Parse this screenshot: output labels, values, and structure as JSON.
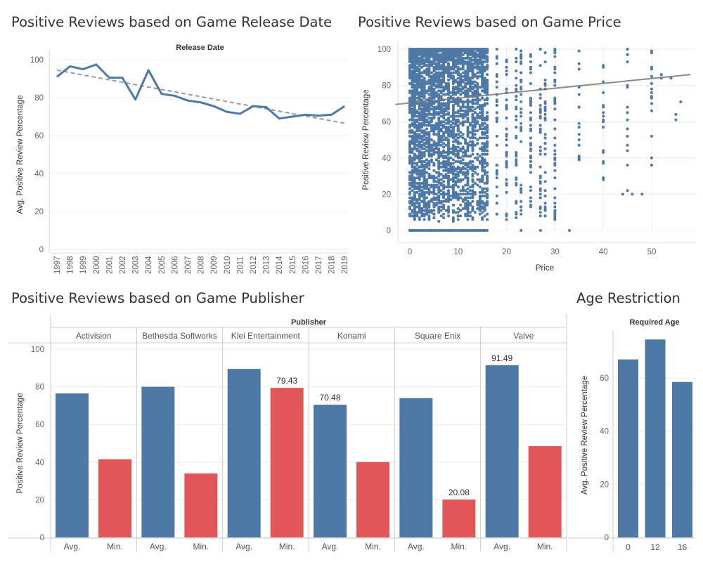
{
  "titles": {
    "release": "Positive Reviews based on Game Release Date",
    "price": "Positive Reviews based on Game Price",
    "publisher": "Positive Reviews based on Game Publisher",
    "age": "Age Restriction"
  },
  "chart_data": [
    {
      "type": "line",
      "title": "Positive Reviews based on Game Release Date",
      "header": "Release Date",
      "ylabel": "Avg. Positive Review Percentage",
      "ylim": [
        0,
        100
      ],
      "yticks": [
        0,
        20,
        40,
        60,
        80,
        100
      ],
      "x": [
        "1997",
        "1998",
        "1999",
        "2000",
        "2001",
        "2002",
        "2003",
        "2004",
        "2005",
        "2006",
        "2007",
        "2008",
        "2009",
        "2010",
        "2011",
        "2012",
        "2013",
        "2014",
        "2015",
        "2016",
        "2017",
        "2018",
        "2019"
      ],
      "values": [
        91,
        96.5,
        95,
        97.5,
        90.5,
        90.5,
        79,
        94.5,
        82,
        81,
        78.5,
        77.5,
        75.5,
        72.5,
        71.5,
        75.5,
        75,
        69,
        70,
        71,
        70.5,
        71,
        75.5
      ],
      "trendline": [
        94.5,
        66.5
      ],
      "grid": true
    },
    {
      "type": "scatter",
      "title": "Positive Reviews based on Game Price",
      "xlabel": "Price",
      "ylabel": "Positive Review Percentage",
      "xlim": [
        -2,
        58
      ],
      "ylim": [
        0,
        100
      ],
      "xticks": [
        0,
        10,
        20,
        30,
        40,
        50
      ],
      "yticks": [
        0,
        20,
        40,
        60,
        80,
        100
      ],
      "trendline": [
        [
          -3,
          69.5
        ],
        [
          58,
          86
        ]
      ],
      "grid": true
    },
    {
      "type": "bar",
      "title": "Positive Reviews based on Game Publisher",
      "header": "Publisher",
      "ylabel": "Positive Review Percentage",
      "ylim": [
        0,
        100
      ],
      "yticks": [
        0,
        20,
        40,
        60,
        80,
        100
      ],
      "categories": [
        "Activision",
        "Bethesda Softworks",
        "Klei Entertainment",
        "Konami",
        "Square Enix",
        "Valve"
      ],
      "sub_labels": [
        "Avg.",
        "Min."
      ],
      "series": [
        {
          "name": "Avg.",
          "values": [
            76.5,
            80,
            89.5,
            70.48,
            74,
            91.49
          ]
        },
        {
          "name": "Min.",
          "values": [
            41.5,
            34,
            79.43,
            40,
            20.08,
            48.5
          ]
        }
      ],
      "data_labels": [
        {
          "publisher": "Klei Entertainment",
          "series": "Min.",
          "text": "79.43"
        },
        {
          "publisher": "Konami",
          "series": "Avg.",
          "text": "70.48"
        },
        {
          "publisher": "Square Enix",
          "series": "Min.",
          "text": "20.08"
        },
        {
          "publisher": "Valve",
          "series": "Avg.",
          "text": "91.49"
        }
      ],
      "grid": true
    },
    {
      "type": "bar",
      "title": "Age Restriction",
      "header": "Required Age",
      "ylabel": "Avg. Positive Review Percentage",
      "ylim": [
        0,
        78
      ],
      "yticks": [
        0,
        20,
        40,
        60
      ],
      "categories": [
        "0",
        "12",
        "16"
      ],
      "values": [
        67,
        74.5,
        58.5
      ],
      "grid": true
    }
  ],
  "colors": {
    "blue": "#4e79a7",
    "red": "#e15759",
    "trend_dashed": "#999999",
    "trend_solid": "#777777",
    "grid": "#ececec"
  }
}
